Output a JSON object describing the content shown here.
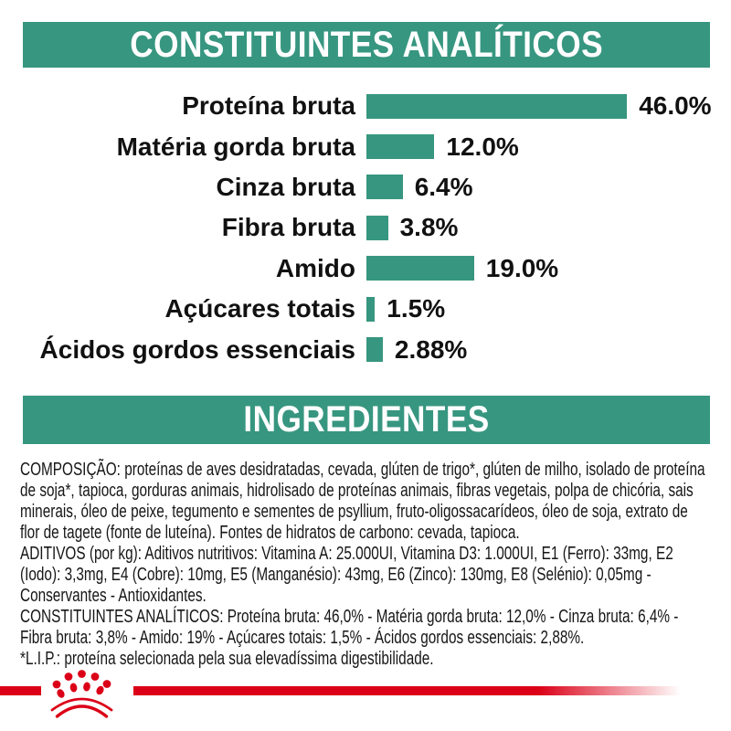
{
  "colors": {
    "teal": "#379680",
    "red": "#DB0017",
    "text": "#1a1a1a",
    "banner_text": "#ffffff"
  },
  "chart_data": {
    "type": "bar",
    "orientation": "horizontal",
    "title": "CONSTITUINTES ANALÍTICOS",
    "categories": [
      "Proteína bruta",
      "Matéria gorda bruta",
      "Cinza bruta",
      "Fibra bruta",
      "Amido",
      "Açúcares totais",
      "Ácidos gordos essenciais"
    ],
    "values": [
      46.0,
      12.0,
      6.4,
      3.8,
      19.0,
      1.5,
      2.88
    ],
    "value_labels": [
      "46.0%",
      "12.0%",
      "6.4%",
      "3.8%",
      "19.0%",
      "1.5%",
      "2.88%"
    ],
    "bar_color": "#379680",
    "xlim": [
      0,
      48
    ],
    "grid": false,
    "legend": "none"
  },
  "ingredients_section": {
    "title": "INGREDIENTES",
    "paragraphs": [
      "COMPOSIÇÃO: proteínas de aves desidratadas, cevada, glúten de trigo*, glúten de milho, isolado de proteína de soja*, tapioca, gorduras animais, hidrolisado de proteínas animais, fibras vegetais, polpa de chicória, sais minerais, óleo de peixe, tegumento e sementes de psyllium, fruto-oligossacarídeos, óleo de soja, extrato de flor de tagete (fonte de luteína). Fontes de hidratos de carbono: cevada, tapioca.",
      "ADITIVOS (por kg): Aditivos nutritivos: Vitamina A: 25.000UI, Vitamina D3: 1.000UI, E1 (Ferro): 33mg, E2 (Iodo): 3,3mg, E4 (Cobre): 10mg, E5 (Manganésio): 43mg, E6 (Zinco): 130mg, E8 (Selénio): 0,05mg - Conservantes - Antioxidantes.",
      "CONSTITUINTES ANALÍTICOS: Proteína bruta: 46,0% - Matéria gorda bruta: 12,0% - Cinza bruta: 6,4% - Fibra bruta: 3,8% - Amido: 19% - Açúcares totais: 1,5% - Ácidos gordos essenciais: 2,88%.",
      "*L.I.P.: proteína selecionada pela sua elevadíssima digestibilidade."
    ]
  },
  "logo": {
    "name": "royal-canin-crown",
    "color": "#DB0017"
  }
}
